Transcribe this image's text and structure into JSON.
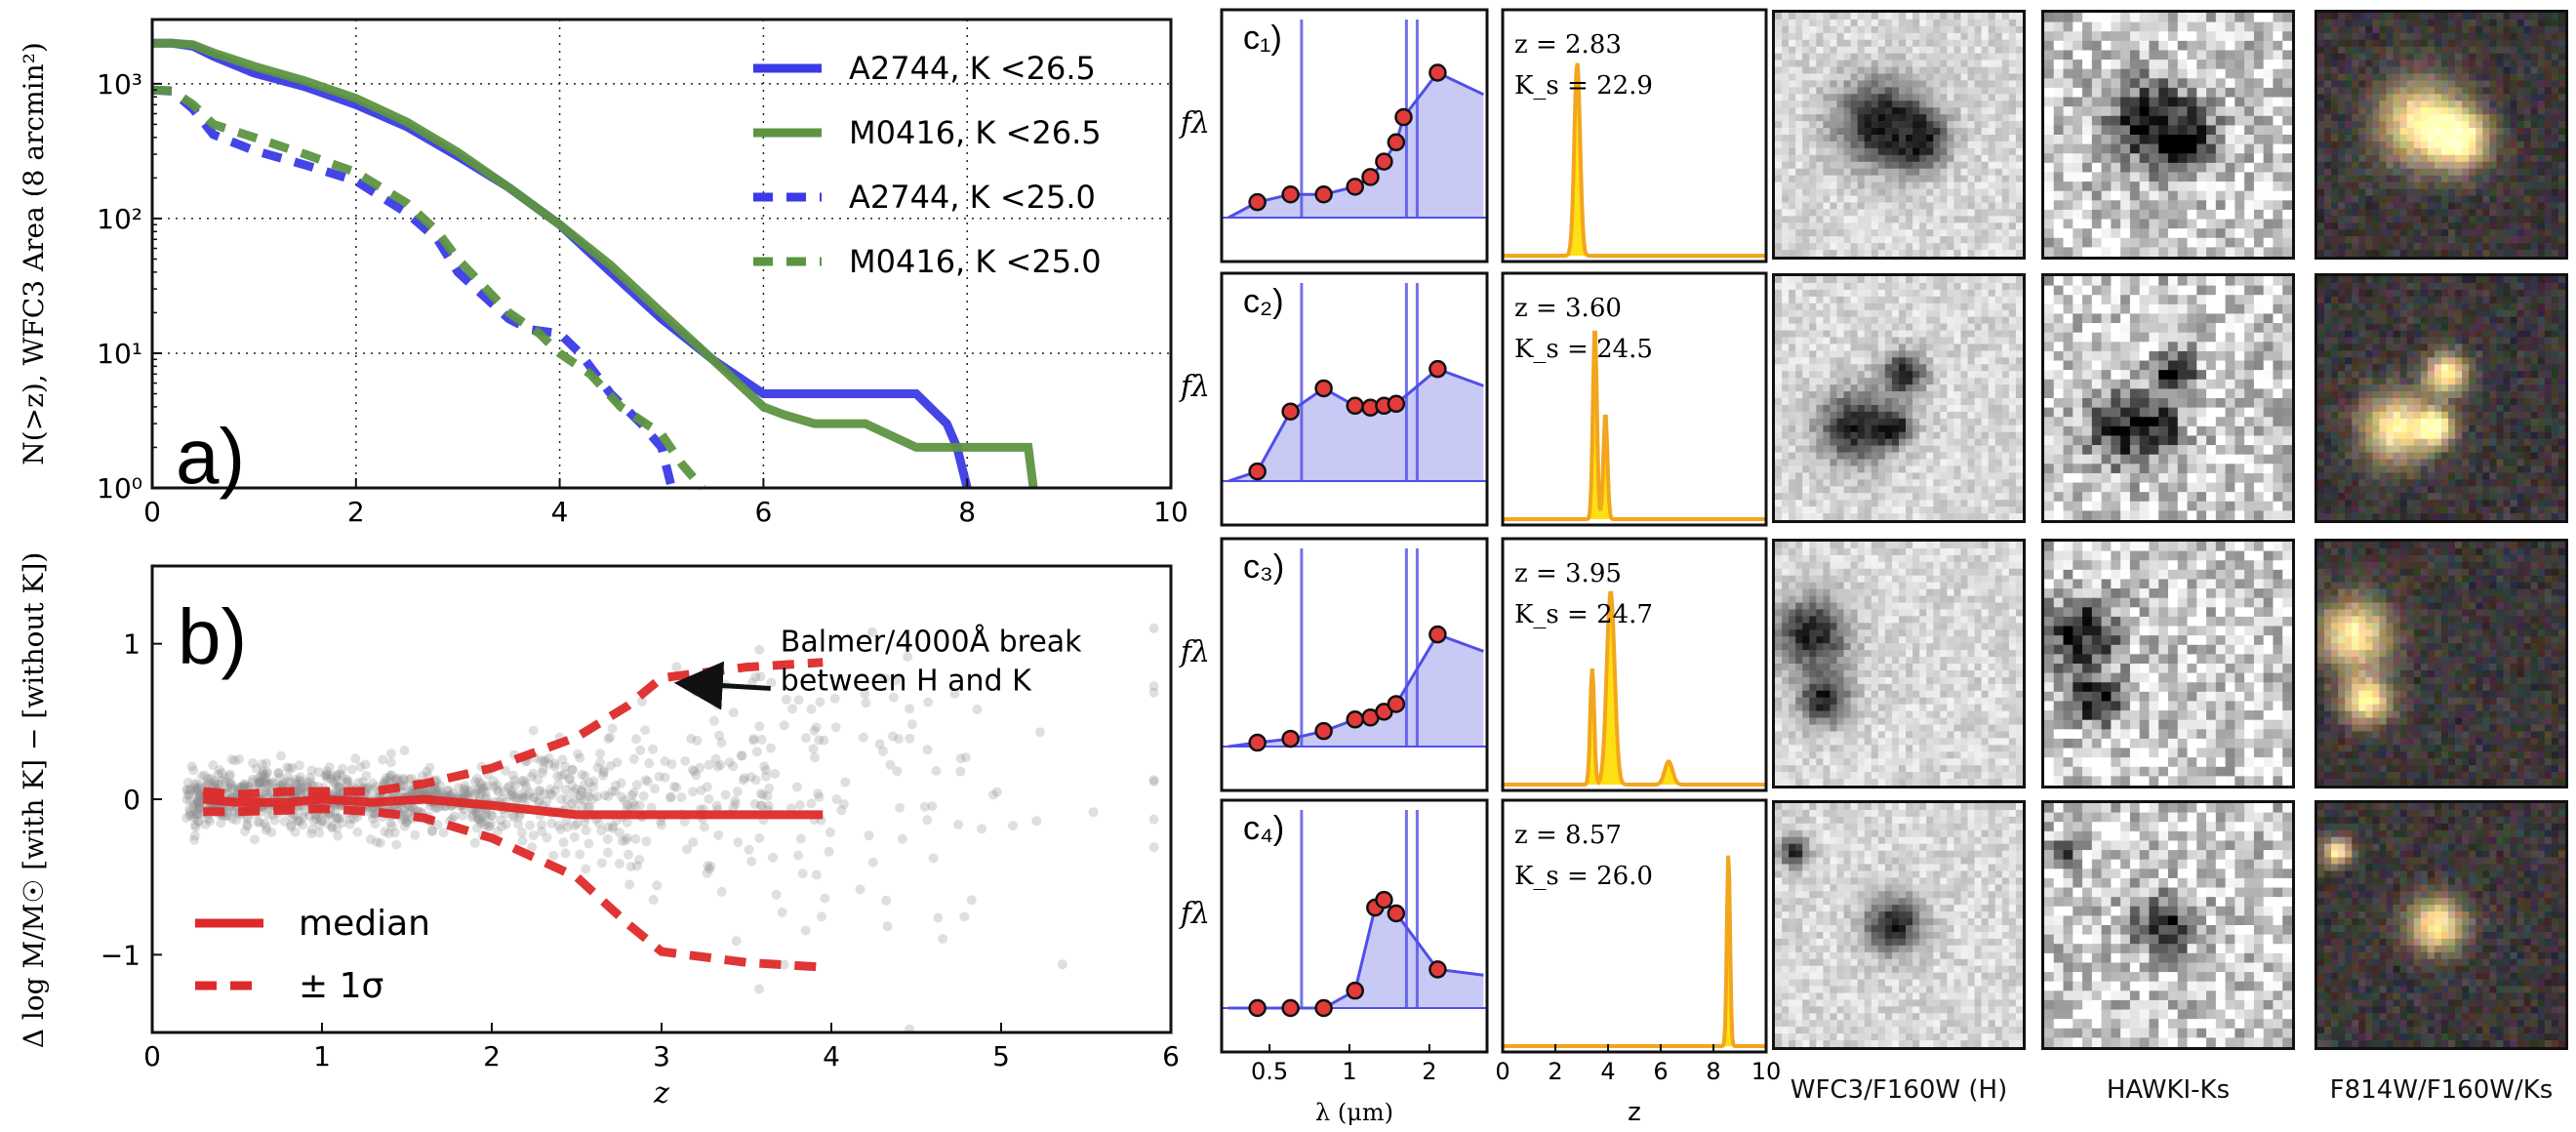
{
  "colors": {
    "a2744": "#3a3ae6",
    "m0416": "#5d9441",
    "median": "#dd2a2a",
    "scatter": "#8c8c8c",
    "sed_fill": "#b7b7f2",
    "sed_line": "#4f4fe8",
    "pz": "#f2a51d",
    "pz_fill": "#ffe014"
  },
  "chart_data": [
    {
      "id": "a",
      "type": "line",
      "panel_label": "a)",
      "xlabel": "",
      "ylabel": "N(>z), WFC3 Area (8 arcmin²)",
      "xlim": [
        0,
        10
      ],
      "ylim": [
        1,
        3000
      ],
      "yscale": "log",
      "xticks": [
        "0",
        "2",
        "4",
        "6",
        "8",
        "10"
      ],
      "yticks": [
        "10⁰",
        "10¹",
        "10²",
        "10³"
      ],
      "grid": true,
      "legend_position": "top-right",
      "series": [
        {
          "name": "A2744, K <26.5",
          "style": "solid",
          "color": "#3a3ae6",
          "x": [
            0,
            0.2,
            0.4,
            0.6,
            1,
            1.5,
            2,
            2.5,
            3,
            3.5,
            4,
            4.5,
            5,
            5.5,
            6,
            6.2,
            6.5,
            7,
            7.5,
            7.8,
            7.9,
            8.0
          ],
          "y": [
            2000,
            2000,
            1900,
            1600,
            1200,
            950,
            700,
            480,
            290,
            170,
            90,
            40,
            18,
            9,
            5,
            5,
            5,
            5,
            5,
            3,
            2,
            1
          ]
        },
        {
          "name": "M0416, K <26.5",
          "style": "solid",
          "color": "#5d9441",
          "x": [
            0,
            0.2,
            0.4,
            0.6,
            1,
            1.5,
            2,
            2.5,
            3,
            3.5,
            4,
            4.5,
            5,
            5.5,
            6,
            6.2,
            6.5,
            7,
            7.5,
            8,
            8.2,
            8.6,
            8.65
          ],
          "y": [
            2000,
            2000,
            1950,
            1700,
            1350,
            1050,
            780,
            520,
            310,
            170,
            90,
            45,
            20,
            9,
            4,
            3.5,
            3,
            3,
            2,
            2,
            2,
            2,
            1
          ]
        },
        {
          "name": "A2744, K <25.0",
          "style": "dashed",
          "color": "#3a3ae6",
          "x": [
            0,
            0.2,
            0.4,
            0.6,
            1,
            1.5,
            2,
            2.5,
            2.8,
            3,
            3.5,
            3.7,
            4,
            4.2,
            4.5,
            4.8,
            5,
            5.1
          ],
          "y": [
            900,
            880,
            650,
            420,
            320,
            250,
            190,
            110,
            70,
            40,
            18,
            15,
            14,
            10,
            5,
            3,
            2,
            1
          ]
        },
        {
          "name": "M0416, K <25.0",
          "style": "dashed",
          "color": "#5d9441",
          "x": [
            0,
            0.2,
            0.4,
            0.6,
            1,
            1.5,
            2,
            2.5,
            2.8,
            3,
            3.5,
            3.8,
            4,
            4.3,
            4.6,
            5,
            5.2,
            5.4
          ],
          "y": [
            900,
            890,
            700,
            500,
            400,
            300,
            220,
            130,
            80,
            50,
            20,
            14,
            10,
            7,
            4,
            2.5,
            1.5,
            1
          ]
        }
      ]
    },
    {
      "id": "b",
      "type": "scatter",
      "panel_label": "b)",
      "xlabel": "z",
      "ylabel": "Δ log M/M☉ [with K] − [without K])",
      "xlim": [
        0,
        6
      ],
      "ylim": [
        -1.5,
        1.5
      ],
      "xticks": [
        "0",
        "1",
        "2",
        "3",
        "4",
        "5",
        "6"
      ],
      "yticks": [
        "−1",
        "0",
        "1"
      ],
      "annotation": {
        "text_line1": "Balmer/4000Å break",
        "text_line2": "between H and K",
        "x": 3.7,
        "y": 0.65,
        "arrow_to_x": 3.05,
        "arrow_to_y": 0.72
      },
      "legend_position": "bottom-left",
      "series": [
        {
          "name": "median",
          "style": "solid",
          "color": "#dd2a2a",
          "x": [
            0.3,
            0.5,
            0.8,
            1.0,
            1.3,
            1.6,
            2.0,
            2.5,
            3.0,
            3.5,
            3.95
          ],
          "y": [
            0.0,
            -0.02,
            -0.02,
            0.0,
            -0.02,
            0.0,
            -0.04,
            -0.1,
            -0.1,
            -0.1,
            -0.1
          ]
        },
        {
          "name": "± 1σ",
          "style": "dashed",
          "color": "#dd2a2a",
          "x": [
            0.3,
            0.5,
            0.8,
            1.0,
            1.3,
            1.6,
            2.0,
            2.5,
            2.8,
            3.0,
            3.5,
            3.95
          ],
          "y": [
            0.05,
            0.03,
            0.05,
            0.05,
            0.05,
            0.1,
            0.2,
            0.4,
            0.6,
            0.78,
            0.85,
            0.88
          ]
        },
        {
          "name": "",
          "style": "dashed",
          "color": "#dd2a2a",
          "x": [
            0.3,
            0.5,
            0.8,
            1.0,
            1.3,
            1.6,
            2.0,
            2.5,
            2.8,
            3.0,
            3.5,
            3.95
          ],
          "y": [
            -0.08,
            -0.08,
            -0.07,
            -0.06,
            -0.08,
            -0.12,
            -0.25,
            -0.5,
            -0.8,
            -0.98,
            -1.05,
            -1.08
          ]
        }
      ]
    },
    {
      "id": "c_sed",
      "type": "line",
      "xlabel": "λ (μm)",
      "ylabel": "fλ",
      "xscale": "log",
      "xticks": [
        "0.5",
        "1",
        "2"
      ],
      "rows": [
        {
          "label": "c₁)",
          "points": [
            [
              0.45,
              0.08
            ],
            [
              0.6,
              0.12
            ],
            [
              0.8,
              0.12
            ],
            [
              1.05,
              0.16
            ],
            [
              1.2,
              0.21
            ],
            [
              1.35,
              0.29
            ],
            [
              1.5,
              0.39
            ],
            [
              1.6,
              0.52
            ],
            [
              2.15,
              0.75
            ]
          ]
        },
        {
          "label": "c₂)",
          "points": [
            [
              0.45,
              0.05
            ],
            [
              0.6,
              0.36
            ],
            [
              0.8,
              0.48
            ],
            [
              1.05,
              0.39
            ],
            [
              1.2,
              0.38
            ],
            [
              1.35,
              0.39
            ],
            [
              1.5,
              0.4
            ],
            [
              2.15,
              0.58
            ]
          ]
        },
        {
          "label": "c₃)",
          "points": [
            [
              0.45,
              0.02
            ],
            [
              0.6,
              0.04
            ],
            [
              0.8,
              0.08
            ],
            [
              1.05,
              0.14
            ],
            [
              1.2,
              0.15
            ],
            [
              1.35,
              0.18
            ],
            [
              1.5,
              0.22
            ],
            [
              2.15,
              0.58
            ]
          ]
        },
        {
          "label": "c₄)",
          "points": [
            [
              0.45,
              0.0
            ],
            [
              0.6,
              0.0
            ],
            [
              0.8,
              0.0
            ],
            [
              1.05,
              0.09
            ],
            [
              1.25,
              0.52
            ],
            [
              1.35,
              0.56
            ],
            [
              1.5,
              0.49
            ],
            [
              2.15,
              0.2
            ]
          ]
        }
      ]
    },
    {
      "id": "c_pz",
      "type": "area",
      "xlabel": "z",
      "xlim": [
        0,
        10
      ],
      "xticks": [
        "0",
        "2",
        "4",
        "6",
        "8",
        "10"
      ],
      "rows": [
        {
          "z_text": "z = 2.83",
          "k_text": "K_s = 22.9",
          "peaks": [
            [
              2.83,
              0.22,
              1.0
            ]
          ]
        },
        {
          "z_text": "z = 3.60",
          "k_text": "K_s = 24.5",
          "peaks": [
            [
              3.5,
              0.15,
              1.0
            ],
            [
              3.9,
              0.15,
              0.55
            ]
          ]
        },
        {
          "z_text": "z = 3.95",
          "k_text": "K_s = 24.7",
          "peaks": [
            [
              3.4,
              0.15,
              0.6
            ],
            [
              4.1,
              0.3,
              1.0
            ],
            [
              6.3,
              0.3,
              0.12
            ]
          ]
        },
        {
          "z_text": "z = 8.57",
          "k_text": "K_s = 26.0",
          "peaks": [
            [
              8.57,
              0.12,
              1.0
            ]
          ]
        }
      ]
    }
  ],
  "cutouts": {
    "column_labels": [
      "WFC3/F160W (H)",
      "HAWKI-Ks",
      "F814W/F160W/Ks"
    ]
  }
}
